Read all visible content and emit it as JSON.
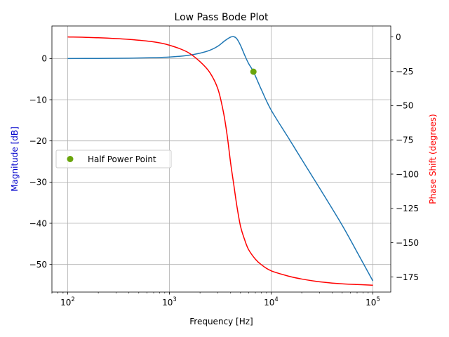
{
  "chart_data": {
    "type": "line",
    "title": "Low Pass Bode Plot",
    "xlabel": "Frequency [Hz]",
    "x_scale": "log",
    "xlim": [
      70,
      150000
    ],
    "x_ticks": [
      {
        "value": 100,
        "base": "10",
        "exp": "2"
      },
      {
        "value": 1000,
        "base": "10",
        "exp": "3"
      },
      {
        "value": 10000,
        "base": "10",
        "exp": "4"
      },
      {
        "value": 100000,
        "base": "10",
        "exp": "5"
      }
    ],
    "left_axis": {
      "label": "Magnitude [dB]",
      "label_color": "#0000cc",
      "ylim": [
        -56.7,
        7.9
      ],
      "ticks": [
        0,
        -10,
        -20,
        -30,
        -40,
        -50
      ],
      "tick_labels": [
        "0",
        "−10",
        "−20",
        "−30",
        "−40",
        "−50"
      ]
    },
    "right_axis": {
      "label": "Phase Shift (degrees)",
      "label_color": "#ff0000",
      "ylim": [
        -186,
        8
      ],
      "ticks": [
        0,
        -25,
        -50,
        -75,
        -100,
        -125,
        -150,
        -175
      ],
      "tick_labels": [
        "0",
        "−25",
        "−50",
        "−75",
        "−100",
        "−125",
        "−150",
        "−175"
      ]
    },
    "grid": true,
    "legend_placement": "center-left",
    "series": [
      {
        "color": "#1f77b4",
        "axis": "left",
        "points": [
          [
            100,
            0
          ],
          [
            200,
            0.02
          ],
          [
            400,
            0.08
          ],
          [
            700,
            0.2
          ],
          [
            1000,
            0.35
          ],
          [
            1500,
            0.75
          ],
          [
            2000,
            1.3
          ],
          [
            2500,
            2.0
          ],
          [
            3000,
            3.0
          ],
          [
            3500,
            4.3
          ],
          [
            4000,
            5.2
          ],
          [
            4300,
            5.3
          ],
          [
            4600,
            4.8
          ],
          [
            5000,
            3.2
          ],
          [
            5500,
            0.8
          ],
          [
            6000,
            -1.2
          ],
          [
            6700,
            -3.2
          ],
          [
            8000,
            -7.5
          ],
          [
            10000,
            -12.5
          ],
          [
            15000,
            -19.5
          ],
          [
            20000,
            -24.5
          ],
          [
            30000,
            -31.5
          ],
          [
            50000,
            -40.5
          ],
          [
            70000,
            -47
          ],
          [
            100000,
            -54
          ]
        ]
      },
      {
        "color": "#ff0000",
        "axis": "right",
        "points": [
          [
            100,
            0
          ],
          [
            200,
            -0.6
          ],
          [
            400,
            -1.8
          ],
          [
            700,
            -3.6
          ],
          [
            1000,
            -6
          ],
          [
            1500,
            -11
          ],
          [
            2000,
            -18
          ],
          [
            2500,
            -26
          ],
          [
            3000,
            -38
          ],
          [
            3400,
            -55
          ],
          [
            3700,
            -72
          ],
          [
            4000,
            -92
          ],
          [
            4300,
            -108
          ],
          [
            4600,
            -123
          ],
          [
            5000,
            -138
          ],
          [
            5500,
            -148
          ],
          [
            6000,
            -155
          ],
          [
            7000,
            -162
          ],
          [
            8000,
            -166
          ],
          [
            10000,
            -170.5
          ],
          [
            15000,
            -174.5
          ],
          [
            20000,
            -176.5
          ],
          [
            30000,
            -178.5
          ],
          [
            50000,
            -180
          ],
          [
            100000,
            -181
          ]
        ]
      }
    ],
    "markers": [
      {
        "name": "Half Power Point",
        "x": 6700,
        "y": -3.2,
        "axis": "left",
        "color": "#6aa50c"
      }
    ],
    "legend": [
      {
        "label": "Half Power Point",
        "color": "#6aa50c"
      }
    ]
  }
}
